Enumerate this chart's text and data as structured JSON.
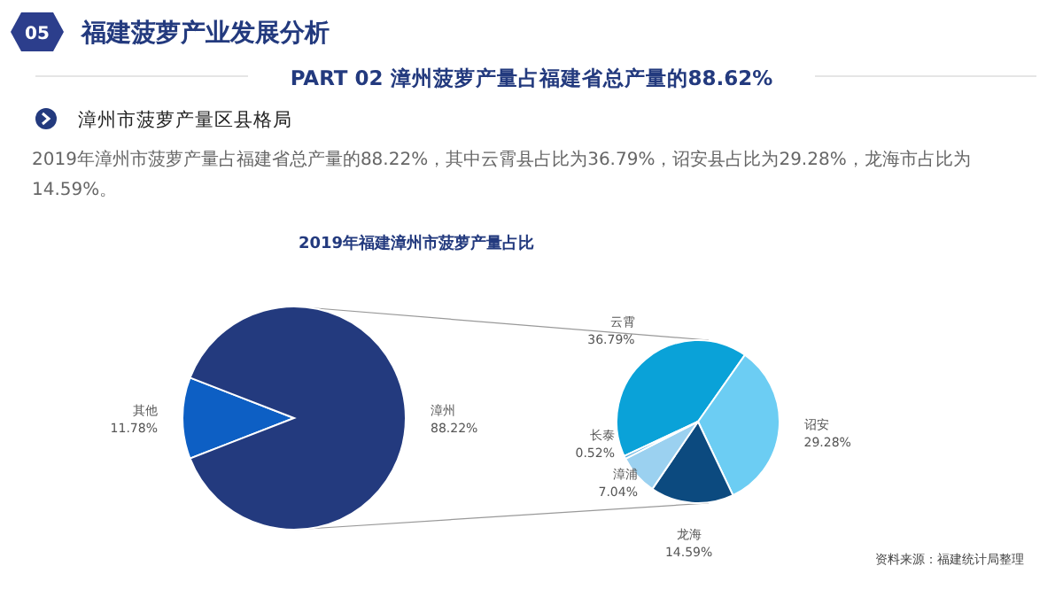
{
  "chart_data": [
    {
      "type": "pie",
      "title": "2019年福建漳州市菠萝产量占比",
      "annotations": [
        "05",
        "福建菠萝产业发展分析",
        "PART 02  漳州菠萝产量占福建省总产量的88.62%",
        "漳州市菠萝产量区县格局",
        "2019年漳州市菠萝产量占福建省总产量的88.22%，其中云霄县占比为36.79%，诏安县占比为29.28%，龙海市占比为14.59%。"
      ],
      "categories": [
        "其他",
        "漳州"
      ],
      "values": [
        11.78,
        88.22
      ],
      "colors": [
        "#0d5fc4",
        "#233a7e"
      ],
      "value_labels": [
        "11.78%",
        "88.22%"
      ]
    },
    {
      "type": "pie",
      "annotations": [
        "资料来源：福建统计局整理"
      ],
      "categories": [
        "云霄",
        "诏安",
        "龙海",
        "漳浦",
        "长泰"
      ],
      "values": [
        36.79,
        29.28,
        14.59,
        7.04,
        0.52
      ],
      "colors": [
        "#0aa2d8",
        "#6ccdf3",
        "#0c4a7f",
        "#9bd1f0",
        "#5aaede"
      ],
      "value_labels": [
        "36.79%",
        "29.28%",
        "14.59%",
        "7.04%",
        "0.52%"
      ]
    }
  ]
}
